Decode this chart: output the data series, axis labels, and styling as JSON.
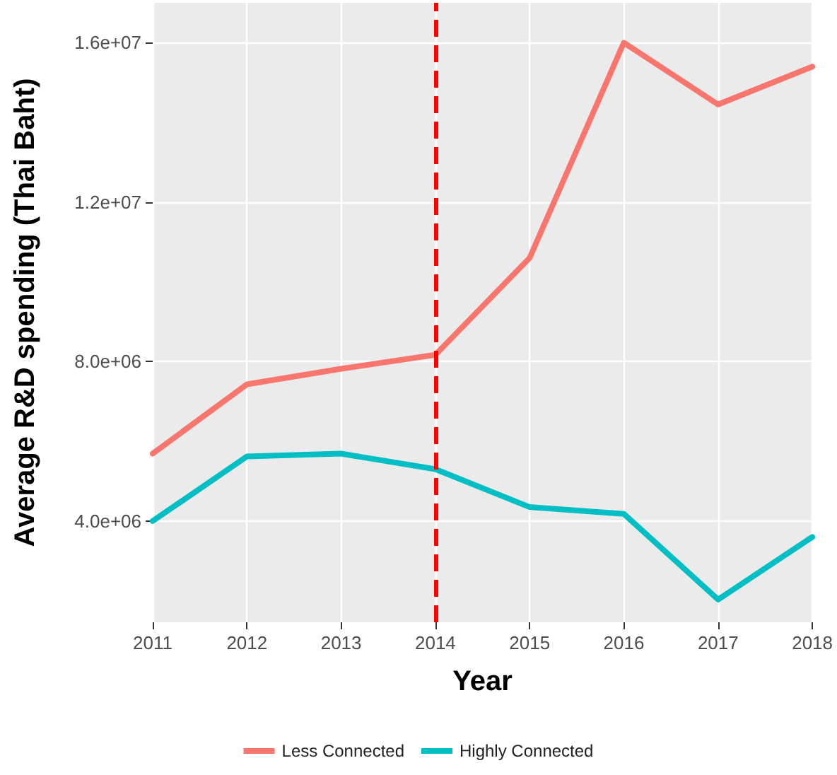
{
  "chart_data": {
    "type": "line",
    "xlabel": "Year",
    "ylabel": "Average R&D spending (Thai Baht)",
    "categories": [
      "2011",
      "2012",
      "2013",
      "2014",
      "2015",
      "2016",
      "2017",
      "2018"
    ],
    "series": [
      {
        "name": "Less Connected",
        "color": "#f8766d",
        "values": [
          5690000,
          7430000,
          7820000,
          8170000,
          10600000,
          16000000,
          14450000,
          15400000
        ]
      },
      {
        "name": "Highly Connected",
        "color": "#00bfc4",
        "values": [
          4000000,
          5620000,
          5690000,
          5300000,
          4350000,
          4180000,
          2030000,
          3600000
        ]
      }
    ],
    "ylim": [
      1460000,
      17000000
    ],
    "yticks": [
      {
        "value": 4000000,
        "label": "4.0e+06"
      },
      {
        "value": 8000000,
        "label": "8.0e+06"
      },
      {
        "value": 12000000,
        "label": "1.2e+07"
      },
      {
        "value": 16000000,
        "label": "1.6e+07"
      }
    ],
    "ref_lines": [
      {
        "axis": "x",
        "value": "2014",
        "color": "#ff0000",
        "line_style": "dashed"
      }
    ],
    "grid": true,
    "legend": "bottom",
    "marker": "none",
    "line_style": "solid"
  }
}
